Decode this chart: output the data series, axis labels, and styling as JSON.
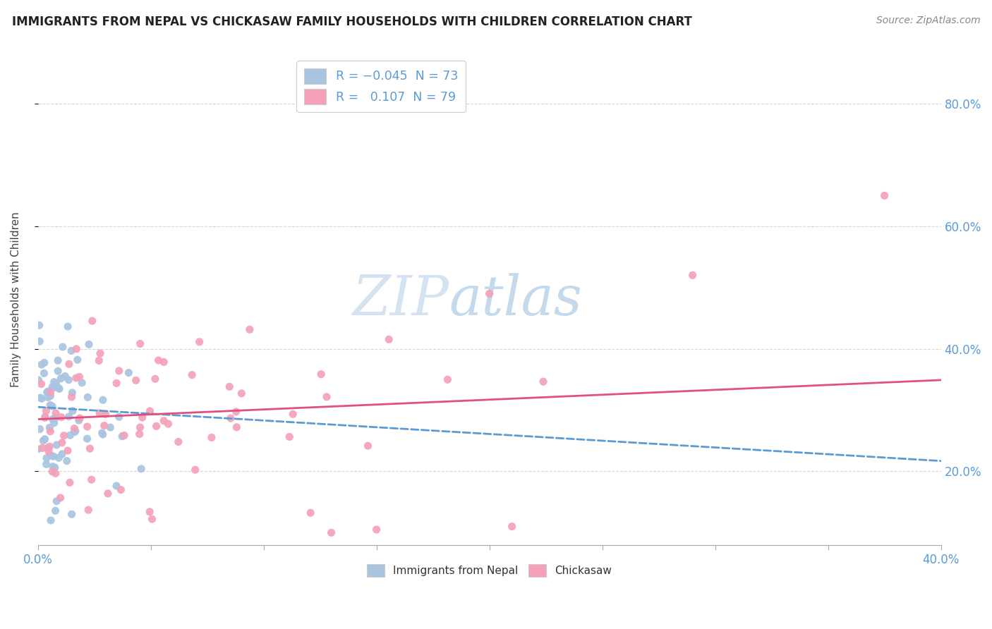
{
  "title": "IMMIGRANTS FROM NEPAL VS CHICKASAW FAMILY HOUSEHOLDS WITH CHILDREN CORRELATION CHART",
  "source": "Source: ZipAtlas.com",
  "ylabel": "Family Households with Children",
  "series1_color": "#a8c4e0",
  "series2_color": "#f4a0b8",
  "trend1_color": "#5b9bd5",
  "trend2_color": "#e05080",
  "watermark_color": "#d0dff0",
  "background_color": "#ffffff",
  "grid_color": "#cccccc",
  "x_min": 0.0,
  "x_max": 40.0,
  "y_min": 8.0,
  "y_max": 88.0,
  "ytick_vals": [
    20,
    40,
    60,
    80
  ],
  "n1": 73,
  "n2": 79,
  "trend1_intercept": 30.5,
  "trend1_slope": -0.22,
  "trend2_intercept": 28.5,
  "trend2_slope": 0.16
}
